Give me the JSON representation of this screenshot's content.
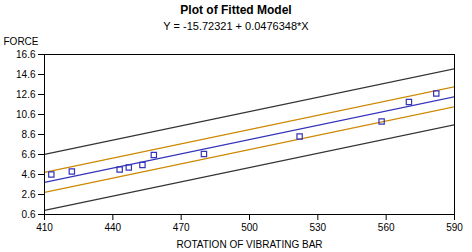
{
  "chart_data": {
    "type": "scatter",
    "title": "Plot of Fitted Model",
    "subtitle": "Y = -15.72321 + 0.0476348*X",
    "x_label": "ROTATION OF VIBRATING BAR",
    "y_label": "FORCE",
    "xlim": [
      410,
      590
    ],
    "ylim": [
      0.6,
      16.6
    ],
    "xticks": [
      410,
      440,
      470,
      500,
      530,
      560,
      590
    ],
    "yticks": [
      0.6,
      2.6,
      4.6,
      6.6,
      8.6,
      10.6,
      12.6,
      14.6,
      16.6
    ],
    "grid": false,
    "legend": false,
    "series": [
      {
        "type": "line",
        "color": "#333333",
        "line_style": "solid",
        "x": [
          410,
          590
        ],
        "values": [
          6.607058,
          15.181322
        ]
      },
      {
        "type": "line",
        "color": "#333333",
        "line_style": "solid",
        "x": [
          410,
          590
        ],
        "values": [
          1.007058,
          9.581322
        ]
      },
      {
        "type": "line",
        "color": "#cc8800",
        "line_style": "solid",
        "x": [
          410,
          590
        ],
        "values": [
          4.807058,
          13.381322
        ]
      },
      {
        "type": "line",
        "color": "#cc8800",
        "line_style": "solid",
        "x": [
          410,
          590
        ],
        "values": [
          2.807058,
          11.381322
        ]
      },
      {
        "type": "line",
        "color": "#3333bb",
        "line_style": "solid",
        "x": [
          410,
          590
        ],
        "values": [
          3.807058,
          12.381322
        ]
      },
      {
        "type": "scatter",
        "color": "#3333bb",
        "marker": "square",
        "x": [
          413,
          422,
          443,
          447,
          453,
          458,
          480,
          522,
          558,
          570,
          582
        ],
        "values": [
          4.6,
          4.9,
          5.1,
          5.3,
          5.55,
          6.55,
          6.65,
          8.4,
          9.9,
          11.85,
          12.7
        ]
      }
    ]
  }
}
